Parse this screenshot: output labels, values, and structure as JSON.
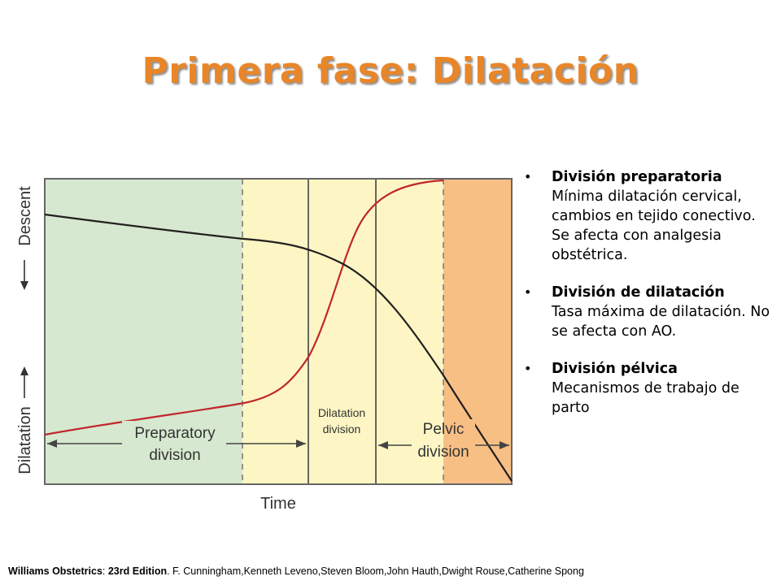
{
  "slide": {
    "title": "Primera fase: Dilatación"
  },
  "diagram": {
    "y_axis_top_label": "Descent",
    "y_axis_bottom_label": "Dilatation",
    "x_axis_label": "Time",
    "divisions": {
      "preparatory": [
        "Preparatory",
        "division"
      ],
      "dilatation": [
        "Dilatation",
        "division"
      ],
      "pelvic": [
        "Pelvic",
        "division"
      ]
    },
    "colors": {
      "preparatory_zone": "#d6e8cf",
      "dilatation_zone": "#fdf6c4",
      "pelvic_zone": "#f8bf84",
      "dilatation_curve": "#c0272d",
      "descent_curve": "#231f20"
    }
  },
  "bullets": [
    {
      "head": "División preparatoria",
      "body": "Mínima dilatación cervical, cambios en tejido conectivo. Se afecta con analgesia obstétrica."
    },
    {
      "head": "División de dilatación",
      "body": "Tasa máxima de dilatación. No se afecta con AO."
    },
    {
      "head": "División pélvica",
      "body": "Mecanismos de trabajo de parto"
    }
  ],
  "citation": {
    "book": "Williams Obstetrics",
    "edition": "23rd Edition",
    "authors": ". F. Cunningham,Kenneth Leveno,Steven Bloom,John Hauth,Dwight Rouse,Catherine Spong"
  }
}
